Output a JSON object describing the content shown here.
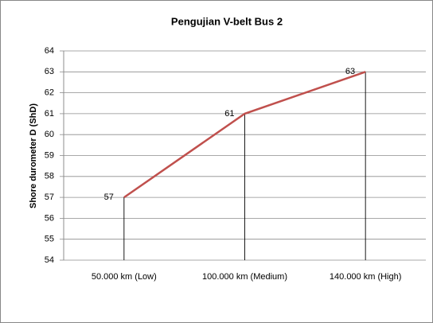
{
  "chart_data": {
    "type": "line",
    "title": "Pengujian V-belt Bus 2",
    "y_label": "Shore durometer D (ShD)",
    "categories": [
      "50.000 km (Low)",
      "100.000 km (Medium)",
      "140.000 km (High)"
    ],
    "values": [
      57,
      61,
      63
    ],
    "color": "#c0504d",
    "ylim": [
      54,
      64
    ],
    "yticks": [
      54,
      55,
      56,
      57,
      58,
      59,
      60,
      61,
      62,
      63,
      64
    ],
    "grid": true,
    "drop_lines": true,
    "data_labels": true
  }
}
